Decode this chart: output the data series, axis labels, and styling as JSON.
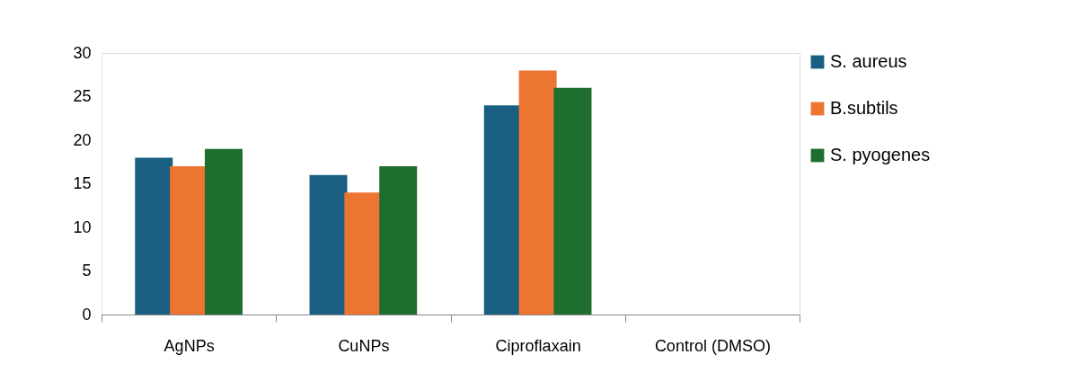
{
  "chart_data": {
    "type": "bar",
    "categories": [
      "AgNPs",
      "CuNPs",
      "Ciproflaxain",
      "Control (DMSO)"
    ],
    "series": [
      {
        "name": "S. aureus",
        "color": "#1a5f82",
        "values": [
          18,
          16,
          24,
          0
        ]
      },
      {
        "name": "B.subtils",
        "color": "#ed7532",
        "values": [
          17,
          14,
          28,
          0
        ]
      },
      {
        "name": "S. pyogenes",
        "color": "#1e6e2f",
        "values": [
          19,
          17,
          26,
          0
        ]
      }
    ],
    "ylim": [
      0,
      30
    ],
    "yticks": [
      0,
      5,
      10,
      15,
      20,
      25,
      30
    ],
    "grid": false,
    "legend": "right"
  }
}
